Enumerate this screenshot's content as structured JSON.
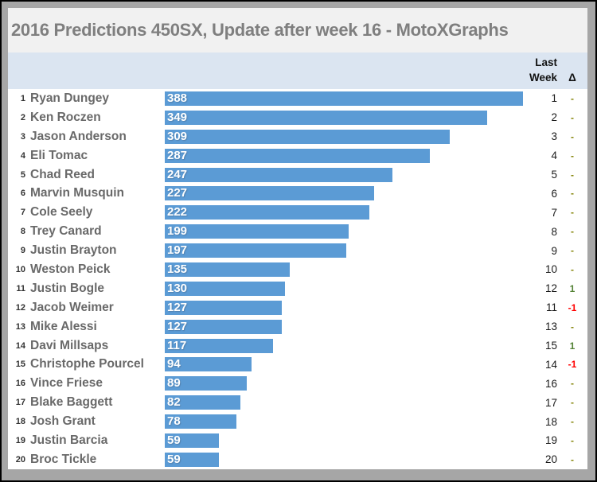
{
  "window": {
    "title": "2016 Predictions 450SX, Update after week 16 - MotoXGraphs"
  },
  "header": {
    "last_week_line1": "Last",
    "last_week_line2": "Week",
    "delta_symbol": "Δ"
  },
  "colors": {
    "bar": "#5b9bd5",
    "header_bg": "#dbe5f1",
    "title_bg": "#f1f1f1",
    "title_text": "#7f7f7f",
    "frame": "#a6a6a6",
    "delta_up": "#548235",
    "delta_down": "#ff0000",
    "delta_none": "#808000"
  },
  "chart_data": {
    "type": "bar",
    "orientation": "horizontal",
    "title": "2016 Predictions 450SX, Update after week 16 - MotoXGraphs",
    "xlabel": "",
    "ylabel": "",
    "xlim": [
      0,
      388
    ],
    "scale_max": 388,
    "grid": false,
    "legend": false,
    "categories": [
      "Ryan Dungey",
      "Ken Roczen",
      "Jason Anderson",
      "Eli Tomac",
      "Chad Reed",
      "Marvin Musquin",
      "Cole Seely",
      "Trey Canard",
      "Justin Brayton",
      "Weston Peick",
      "Justin Bogle",
      "Jacob Weimer",
      "Mike Alessi",
      "Davi Millsaps",
      "Christophe Pourcel",
      "Vince Friese",
      "Blake Baggett",
      "Josh Grant",
      "Justin Barcia",
      "Broc Tickle"
    ],
    "series": [
      {
        "name": "Points",
        "values": [
          388,
          349,
          309,
          287,
          247,
          227,
          222,
          199,
          197,
          135,
          130,
          127,
          127,
          117,
          94,
          89,
          82,
          78,
          59,
          59
        ]
      }
    ],
    "rows": [
      {
        "rank": 1,
        "rider": "Ryan Dungey",
        "points": 388,
        "last_week": 1,
        "delta": "-",
        "delta_state": "none"
      },
      {
        "rank": 2,
        "rider": "Ken Roczen",
        "points": 349,
        "last_week": 2,
        "delta": "-",
        "delta_state": "none"
      },
      {
        "rank": 3,
        "rider": "Jason Anderson",
        "points": 309,
        "last_week": 3,
        "delta": "-",
        "delta_state": "none"
      },
      {
        "rank": 4,
        "rider": "Eli Tomac",
        "points": 287,
        "last_week": 4,
        "delta": "-",
        "delta_state": "none"
      },
      {
        "rank": 5,
        "rider": "Chad Reed",
        "points": 247,
        "last_week": 5,
        "delta": "-",
        "delta_state": "none"
      },
      {
        "rank": 6,
        "rider": "Marvin Musquin",
        "points": 227,
        "last_week": 6,
        "delta": "-",
        "delta_state": "none"
      },
      {
        "rank": 7,
        "rider": "Cole Seely",
        "points": 222,
        "last_week": 7,
        "delta": "-",
        "delta_state": "none"
      },
      {
        "rank": 8,
        "rider": "Trey Canard",
        "points": 199,
        "last_week": 8,
        "delta": "-",
        "delta_state": "none"
      },
      {
        "rank": 9,
        "rider": "Justin Brayton",
        "points": 197,
        "last_week": 9,
        "delta": "-",
        "delta_state": "none"
      },
      {
        "rank": 10,
        "rider": "Weston Peick",
        "points": 135,
        "last_week": 10,
        "delta": "-",
        "delta_state": "none"
      },
      {
        "rank": 11,
        "rider": "Justin Bogle",
        "points": 130,
        "last_week": 12,
        "delta": "1",
        "delta_state": "up"
      },
      {
        "rank": 12,
        "rider": "Jacob Weimer",
        "points": 127,
        "last_week": 11,
        "delta": "-1",
        "delta_state": "down"
      },
      {
        "rank": 13,
        "rider": "Mike Alessi",
        "points": 127,
        "last_week": 13,
        "delta": "-",
        "delta_state": "none"
      },
      {
        "rank": 14,
        "rider": "Davi Millsaps",
        "points": 117,
        "last_week": 15,
        "delta": "1",
        "delta_state": "up"
      },
      {
        "rank": 15,
        "rider": "Christophe Pourcel",
        "points": 94,
        "last_week": 14,
        "delta": "-1",
        "delta_state": "down"
      },
      {
        "rank": 16,
        "rider": "Vince Friese",
        "points": 89,
        "last_week": 16,
        "delta": "-",
        "delta_state": "none"
      },
      {
        "rank": 17,
        "rider": "Blake Baggett",
        "points": 82,
        "last_week": 17,
        "delta": "-",
        "delta_state": "none"
      },
      {
        "rank": 18,
        "rider": "Josh Grant",
        "points": 78,
        "last_week": 18,
        "delta": "-",
        "delta_state": "none"
      },
      {
        "rank": 19,
        "rider": "Justin Barcia",
        "points": 59,
        "last_week": 19,
        "delta": "-",
        "delta_state": "none"
      },
      {
        "rank": 20,
        "rider": "Broc Tickle",
        "points": 59,
        "last_week": 20,
        "delta": "-",
        "delta_state": "none"
      }
    ]
  }
}
